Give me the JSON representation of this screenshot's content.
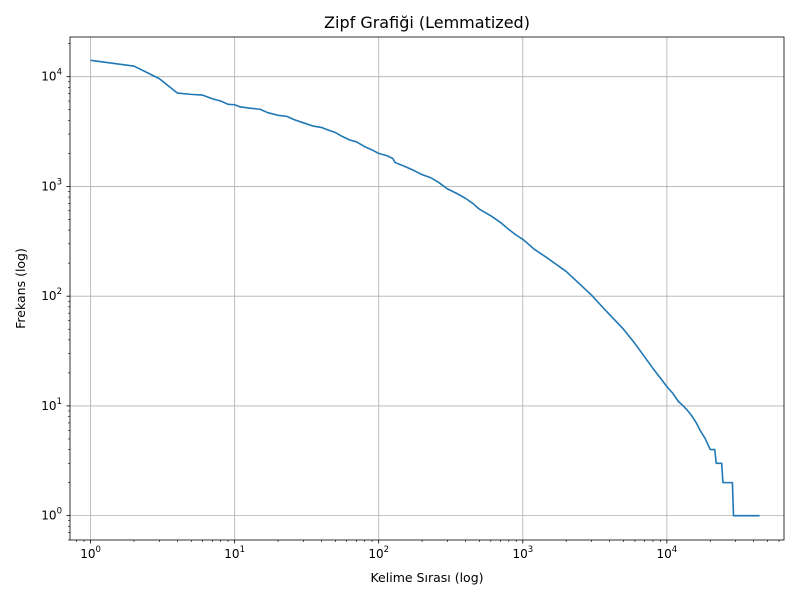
{
  "chart_data": {
    "type": "line",
    "title": "Zipf Grafiği (Lemmatized)",
    "xlabel": "Kelime Sırası (log)",
    "ylabel": "Frekans (log)",
    "xscale": "log",
    "yscale": "log",
    "grid": true,
    "xlim": [
      0.72,
      65000
    ],
    "ylim": [
      0.6,
      23000
    ],
    "x_ticks": [
      {
        "value": 1,
        "base": "10",
        "exp": "0"
      },
      {
        "value": 10,
        "base": "10",
        "exp": "1"
      },
      {
        "value": 100,
        "base": "10",
        "exp": "2"
      },
      {
        "value": 1000,
        "base": "10",
        "exp": "3"
      },
      {
        "value": 10000,
        "base": "10",
        "exp": "4"
      }
    ],
    "y_ticks": [
      {
        "value": 1,
        "base": "10",
        "exp": "0"
      },
      {
        "value": 10,
        "base": "10",
        "exp": "1"
      },
      {
        "value": 100,
        "base": "10",
        "exp": "2"
      },
      {
        "value": 1000,
        "base": "10",
        "exp": "3"
      },
      {
        "value": 10000,
        "base": "10",
        "exp": "4"
      }
    ],
    "series": [
      {
        "name": "Lemmatized",
        "color": "#1f77b4",
        "points": [
          [
            1,
            14100
          ],
          [
            2,
            12500
          ],
          [
            3,
            9600
          ],
          [
            4,
            7100
          ],
          [
            5,
            6900
          ],
          [
            6,
            6800
          ],
          [
            7,
            6300
          ],
          [
            8,
            6000
          ],
          [
            9,
            5600
          ],
          [
            10,
            5550
          ],
          [
            11,
            5300
          ],
          [
            13,
            5150
          ],
          [
            15,
            5050
          ],
          [
            17,
            4700
          ],
          [
            20,
            4450
          ],
          [
            23,
            4350
          ],
          [
            26,
            4050
          ],
          [
            30,
            3800
          ],
          [
            35,
            3550
          ],
          [
            40,
            3450
          ],
          [
            45,
            3250
          ],
          [
            50,
            3100
          ],
          [
            56,
            2850
          ],
          [
            63,
            2650
          ],
          [
            70,
            2550
          ],
          [
            80,
            2300
          ],
          [
            90,
            2150
          ],
          [
            100,
            2000
          ],
          [
            115,
            1900
          ],
          [
            125,
            1800
          ],
          [
            130,
            1650
          ],
          [
            150,
            1530
          ],
          [
            175,
            1400
          ],
          [
            200,
            1280
          ],
          [
            230,
            1200
          ],
          [
            260,
            1090
          ],
          [
            300,
            950
          ],
          [
            350,
            860
          ],
          [
            400,
            780
          ],
          [
            450,
            700
          ],
          [
            500,
            620
          ],
          [
            600,
            540
          ],
          [
            700,
            470
          ],
          [
            800,
            405
          ],
          [
            900,
            360
          ],
          [
            1000,
            330
          ],
          [
            1200,
            268
          ],
          [
            1500,
            220
          ],
          [
            2000,
            168
          ],
          [
            2500,
            128
          ],
          [
            3000,
            102
          ],
          [
            3500,
            82
          ],
          [
            4000,
            68
          ],
          [
            5000,
            50
          ],
          [
            6000,
            37
          ],
          [
            7000,
            28
          ],
          [
            8000,
            22
          ],
          [
            9000,
            18
          ],
          [
            10000,
            15
          ],
          [
            11000,
            13
          ],
          [
            12000,
            11
          ],
          [
            13000,
            10
          ],
          [
            14000,
            9
          ],
          [
            15000,
            8
          ],
          [
            16000,
            7
          ],
          [
            17000,
            6
          ],
          [
            18500,
            5
          ],
          [
            20000,
            4
          ],
          [
            21500,
            4
          ],
          [
            22000,
            3
          ],
          [
            24000,
            3
          ],
          [
            24500,
            2
          ],
          [
            28500,
            2
          ],
          [
            29000,
            1
          ],
          [
            44000,
            1
          ]
        ]
      }
    ]
  }
}
